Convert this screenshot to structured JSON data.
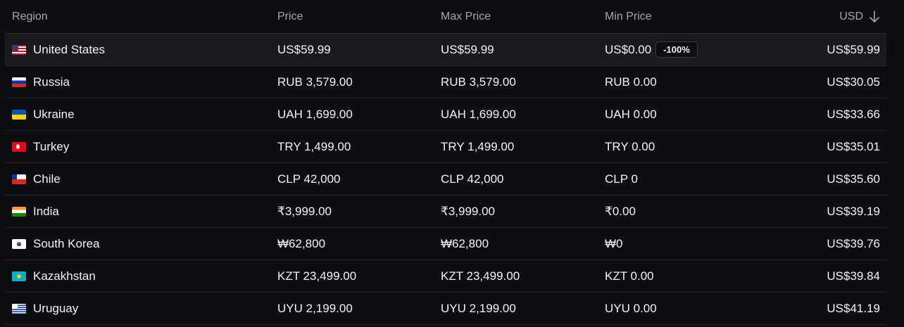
{
  "header": {
    "region": "Region",
    "price": "Price",
    "max_price": "Max Price",
    "min_price": "Min Price",
    "currency": "USD"
  },
  "rows": [
    {
      "flag": "us-flag",
      "region": "United States",
      "price": "US$59.99",
      "max": "US$59.99",
      "min": "US$0.00",
      "badge": "-100%",
      "usd": "US$59.99"
    },
    {
      "flag": "ru-flag",
      "region": "Russia",
      "price": "RUB 3,579.00",
      "max": "RUB 3,579.00",
      "min": "RUB 0.00",
      "usd": "US$30.05"
    },
    {
      "flag": "ua-flag",
      "region": "Ukraine",
      "price": "UAH 1,699.00",
      "max": "UAH 1,699.00",
      "min": "UAH 0.00",
      "usd": "US$33.66"
    },
    {
      "flag": "tr-flag",
      "region": "Turkey",
      "price": "TRY 1,499.00",
      "max": "TRY 1,499.00",
      "min": "TRY 0.00",
      "usd": "US$35.01"
    },
    {
      "flag": "cl-flag",
      "region": "Chile",
      "price": "CLP 42,000",
      "max": "CLP 42,000",
      "min": "CLP 0",
      "usd": "US$35.60"
    },
    {
      "flag": "in-flag",
      "region": "India",
      "price": "₹3,999.00",
      "max": "₹3,999.00",
      "min": "₹0.00",
      "usd": "US$39.19"
    },
    {
      "flag": "kr-flag",
      "region": "South Korea",
      "price": "₩62,800",
      "max": "₩62,800",
      "min": "₩0",
      "usd": "US$39.76"
    },
    {
      "flag": "kz-flag",
      "region": "Kazakhstan",
      "price": "KZT 23,499.00",
      "max": "KZT 23,499.00",
      "min": "KZT 0.00",
      "usd": "US$39.84"
    },
    {
      "flag": "uy-flag",
      "region": "Uruguay",
      "price": "UYU 2,199.00",
      "max": "UYU 2,199.00",
      "min": "UYU 0.00",
      "usd": "US$41.19"
    }
  ],
  "sort": {
    "icon": "arrow-down-icon",
    "direction": "descending"
  }
}
